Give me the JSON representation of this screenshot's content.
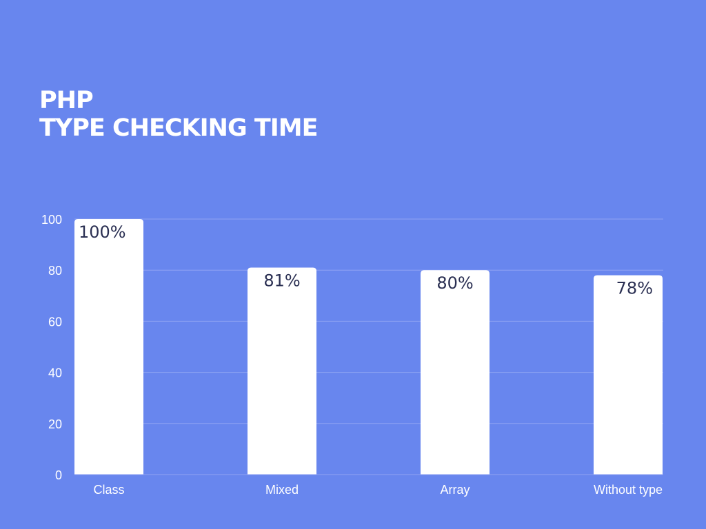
{
  "title_lines": [
    "PHP",
    "TYPE CHECKING TIME"
  ],
  "colors": {
    "background": "#6886ee",
    "bar": "#ffffff",
    "gridline": "#8fa3f3",
    "text": "#ffffff",
    "data_label": "#2a2f52"
  },
  "chart_data": {
    "type": "bar",
    "title": "PHP TYPE CHECKING TIME",
    "categories": [
      "Class",
      "Mixed",
      "Array",
      "Without type"
    ],
    "values": [
      100,
      81,
      80,
      78
    ],
    "data_labels": [
      "100%",
      "81%",
      "80%",
      "78%"
    ],
    "label_align": [
      "left",
      "center",
      "center",
      "right"
    ],
    "ylim": [
      0,
      100
    ],
    "yticks": [
      0,
      20,
      40,
      60,
      80,
      100
    ],
    "xlabel": "",
    "ylabel": "",
    "grid": true,
    "legend": "none"
  }
}
